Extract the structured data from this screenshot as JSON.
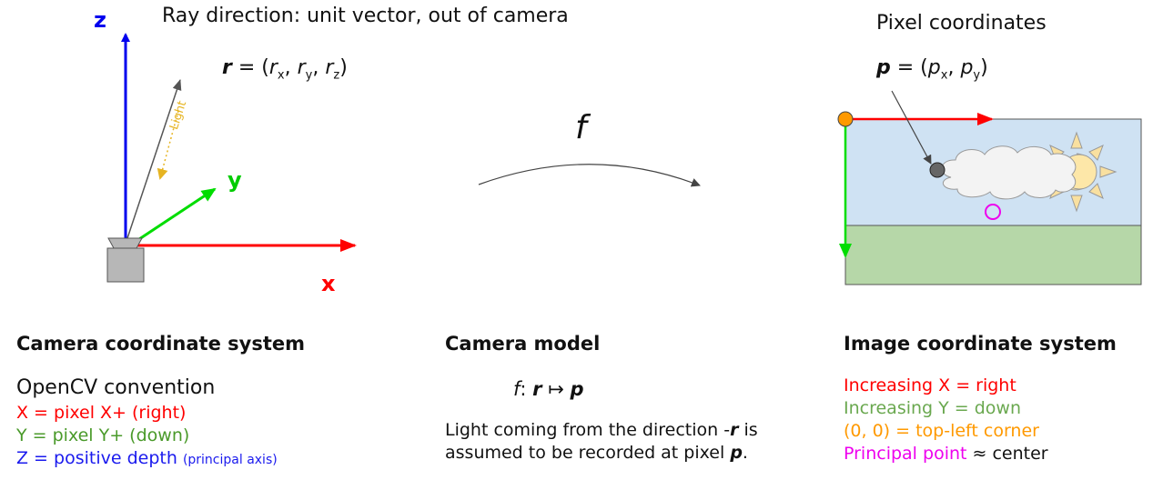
{
  "colors": {
    "x_axis": "#ff0000",
    "y_axis": "#00dd00",
    "z_axis": "#0000ee",
    "light": "#e6b422",
    "origin": "#ff9900",
    "principal": "#ee00ee",
    "sky": "#cfe2f3",
    "ground": "#b6d7a8",
    "camera_body": "#b7b7b7",
    "x_text": "#ff0000",
    "y_text": "#4a9a2a",
    "z_text": "#1a1aee",
    "img_y_text": "#6aa84f",
    "corner_text": "#ff9900"
  },
  "left": {
    "ray_title": "Ray direction: unit vector, out of camera",
    "ray_vec": {
      "sym": "r",
      "eq": " = (",
      "c1": "r",
      "s1": "x",
      "c2": "r",
      "s2": "y",
      "c3": "r",
      "s3": "z",
      "close": ")"
    },
    "axis_z": "z",
    "axis_y": "y",
    "axis_x": "x",
    "light_label": "Light",
    "heading": "Camera coordinate system",
    "convention": "OpenCV convention",
    "line_x": "X = pixel X+ (right)",
    "line_y": "Y = pixel Y+ (down)",
    "line_z": "Z = positive depth",
    "line_z_note": "(principal axis)"
  },
  "middle": {
    "f_symbol": "f",
    "heading": "Camera model",
    "mapping": {
      "f": "f",
      "colon": ": ",
      "r": "r",
      "arrow": " ↦ ",
      "p": "p"
    },
    "desc1_a": "Light coming from the direction -",
    "desc1_r": "r",
    "desc1_b": " is",
    "desc2_a": "assumed to be recorded at pixel ",
    "desc2_p": "p",
    "desc2_b": "."
  },
  "right": {
    "pixel_title": "Pixel coordinates",
    "pix_vec": {
      "sym": "p",
      "eq": " = (",
      "c1": "p",
      "s1": "x",
      "comma": ", ",
      "c2": "p",
      "s2": "y",
      "close": ")"
    },
    "heading": "Image coordinate system",
    "line_x": "Increasing X = right",
    "line_y": "Increasing Y = down",
    "line_corner": "(0, 0) = top-left corner",
    "line_pp": "Principal point",
    "line_pp_rest": " ≈ center"
  }
}
